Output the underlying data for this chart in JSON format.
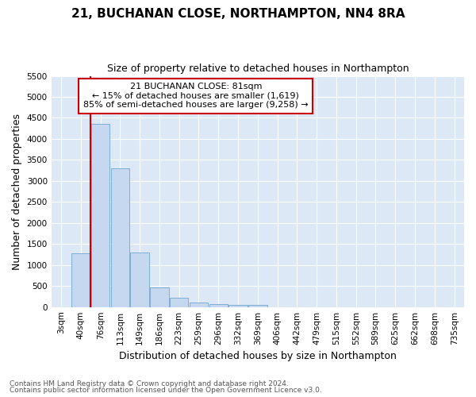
{
  "title": "21, BUCHANAN CLOSE, NORTHAMPTON, NN4 8RA",
  "subtitle": "Size of property relative to detached houses in Northampton",
  "xlabel": "Distribution of detached houses by size in Northampton",
  "ylabel": "Number of detached properties",
  "footnote1": "Contains HM Land Registry data © Crown copyright and database right 2024.",
  "footnote2": "Contains public sector information licensed under the Open Government Licence v3.0.",
  "categories": [
    "3sqm",
    "40sqm",
    "76sqm",
    "113sqm",
    "149sqm",
    "186sqm",
    "223sqm",
    "259sqm",
    "296sqm",
    "332sqm",
    "369sqm",
    "406sqm",
    "442sqm",
    "479sqm",
    "515sqm",
    "552sqm",
    "589sqm",
    "625sqm",
    "662sqm",
    "698sqm",
    "735sqm"
  ],
  "bar_values": [
    0,
    1270,
    4350,
    3300,
    1300,
    475,
    225,
    100,
    65,
    55,
    55,
    0,
    0,
    0,
    0,
    0,
    0,
    0,
    0,
    0,
    0
  ],
  "bar_color": "#c5d8f0",
  "bar_edge_color": "#7bafd4",
  "ylim": [
    0,
    5500
  ],
  "yticks": [
    0,
    500,
    1000,
    1500,
    2000,
    2500,
    3000,
    3500,
    4000,
    4500,
    5000,
    5500
  ],
  "property_line_x": 1.5,
  "annotation_text_line1": "21 BUCHANAN CLOSE: 81sqm",
  "annotation_text_line2": "← 15% of detached houses are smaller (1,619)",
  "annotation_text_line3": "85% of semi-detached houses are larger (9,258) →",
  "annotation_box_color": "#ffffff",
  "annotation_box_edge": "#cc0000",
  "vline_color": "#cc0000",
  "fig_bg_color": "#ffffff",
  "plot_bg_color": "#dce8f5",
  "grid_color": "#ffffff",
  "title_fontsize": 11,
  "subtitle_fontsize": 9,
  "axis_label_fontsize": 9,
  "tick_fontsize": 7.5,
  "annotation_fontsize": 8,
  "footnote_fontsize": 6.5
}
